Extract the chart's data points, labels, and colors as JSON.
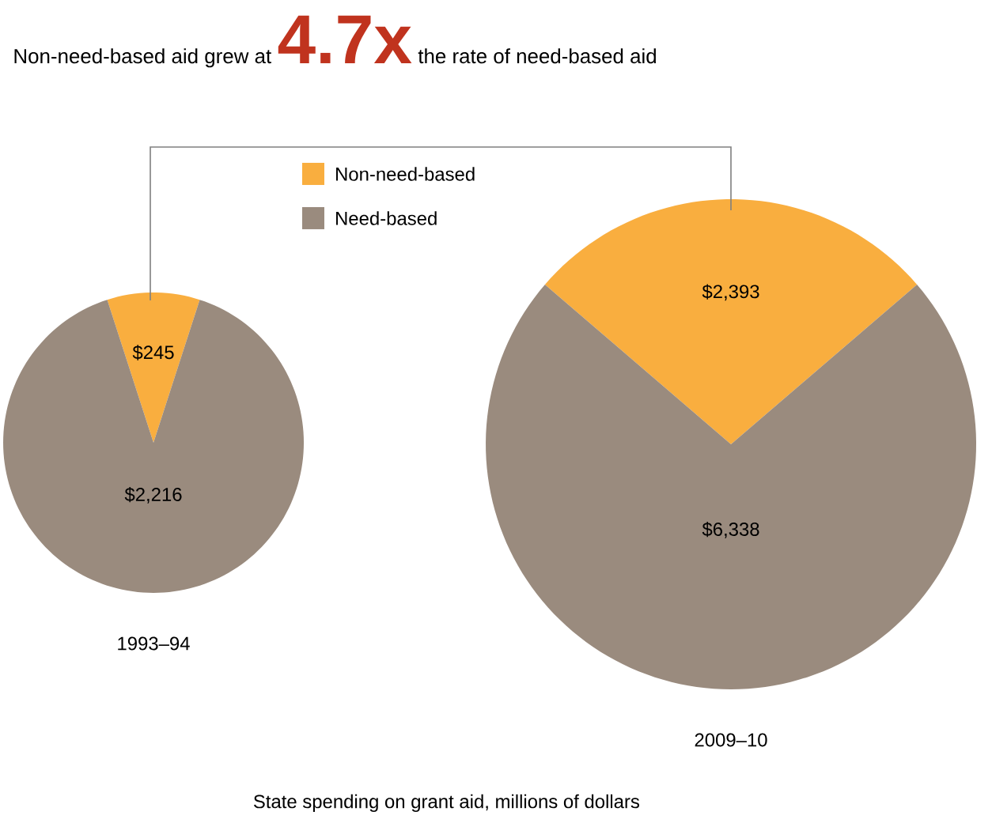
{
  "chart_data": [
    {
      "type": "pie",
      "title": "Non-need-based aid grew at **4.7x** the rate of need-based aid",
      "xlabel": "1993–94",
      "categories": [
        null,
        null
      ],
      "values": [
        245,
        2216
      ],
      "colors": [
        "#f9ae3f",
        "#9a8b7e"
      ],
      "value_labels": [
        "$245",
        "$2,216"
      ]
    },
    {
      "type": "pie",
      "xlabel": "2009–10",
      "categories": [
        "Non-need-based",
        "Need-based"
      ],
      "values": [
        2393,
        6338
      ],
      "colors": [
        "#f9ae3f",
        "#9a8b7e"
      ],
      "value_labels": [
        "$2,393",
        "$6,338"
      ],
      "legend": "top left",
      "annotations": [
        "State spending on grant aid, millions of dollars"
      ]
    }
  ]
}
